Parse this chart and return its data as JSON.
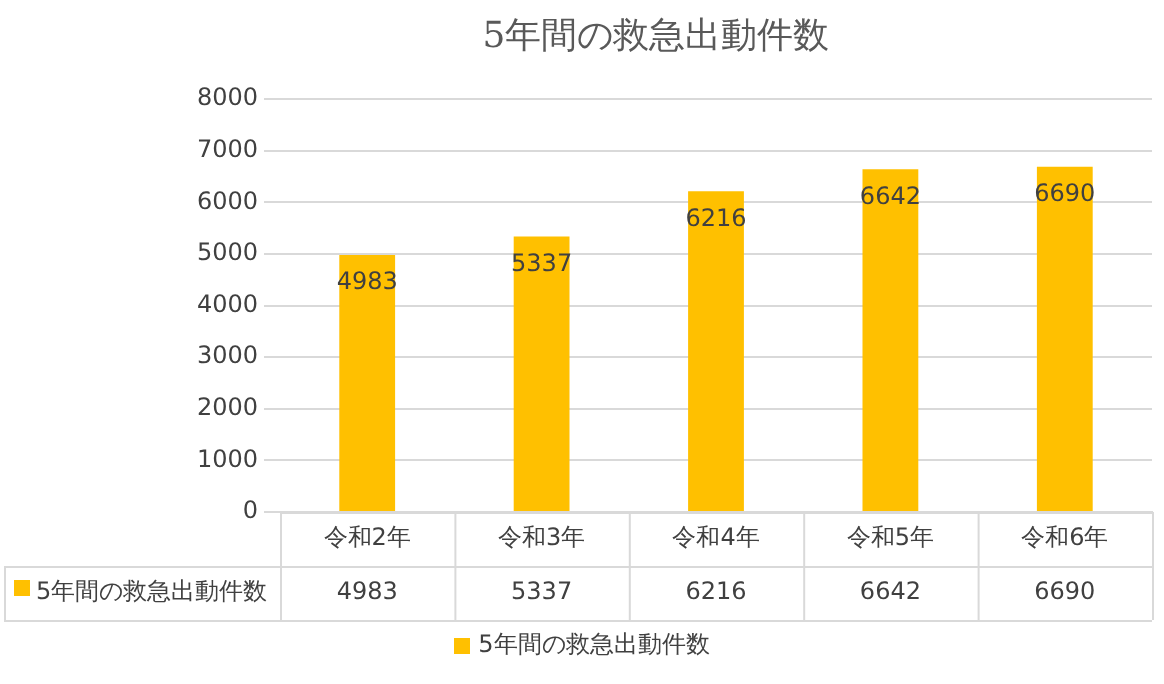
{
  "chart_data": {
    "type": "bar",
    "title": "5年間の救急出動件数",
    "categories": [
      "令和2年",
      "令和3年",
      "令和4年",
      "令和5年",
      "令和6年"
    ],
    "series": [
      {
        "name": "5年間の救急出動件数",
        "color": "#ffc000",
        "values": [
          4983,
          5337,
          6216,
          6642,
          6690
        ],
        "value_labels": [
          "4983",
          "5337",
          "6216",
          "6642",
          "6690"
        ]
      }
    ],
    "ylim": [
      0,
      8000
    ],
    "yticks": [
      0,
      1000,
      2000,
      3000,
      4000,
      5000,
      6000,
      7000,
      8000
    ],
    "annotations": [
      "4983",
      "5337",
      "6216",
      "6642",
      "6690"
    ],
    "grid": "y",
    "legend": "bottom"
  }
}
